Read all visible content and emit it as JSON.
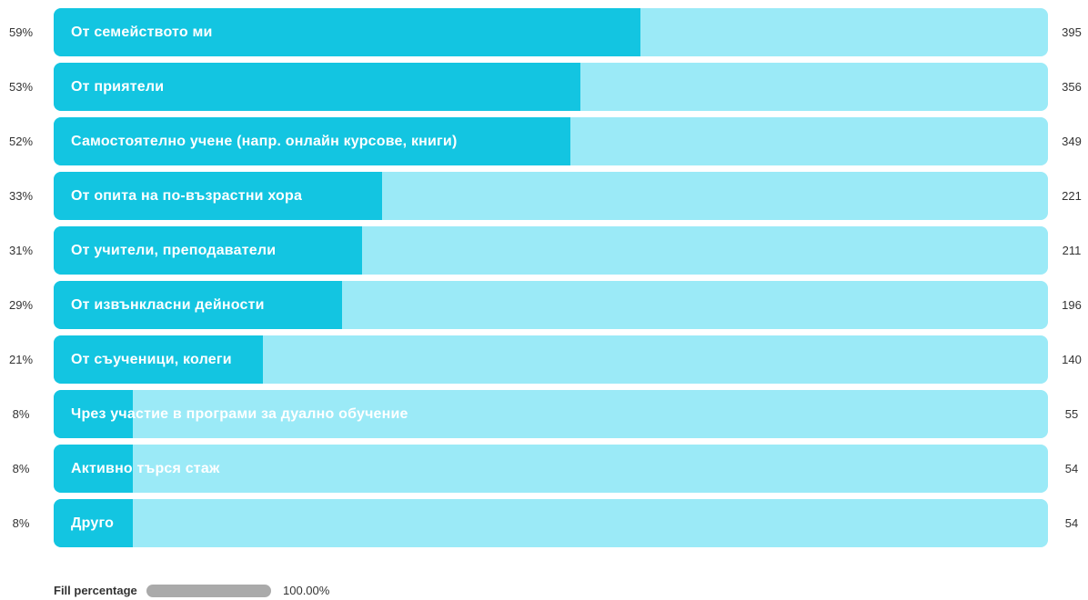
{
  "chart_data": {
    "type": "bar",
    "orientation": "horizontal",
    "categories": [
      "От семейството ми",
      "От приятели",
      "Самостоятелно учене (напр. онлайн курсове, книги)",
      "От опита на по-възрастни хора",
      "От учители, преподаватели",
      "От извънкласни дейности",
      "От съученици, колеги",
      "Чрез участие в програми за дуално обучение",
      "Активно търся стаж",
      "Друго"
    ],
    "percent_labels": [
      "59%",
      "53%",
      "52%",
      "33%",
      "31%",
      "29%",
      "21%",
      "8%",
      "8%",
      "8%"
    ],
    "values": [
      395,
      356,
      349,
      221,
      211,
      196,
      140,
      55,
      54,
      54
    ],
    "colors": {
      "fill": "#13c5e1",
      "track": "#9beaf7"
    }
  },
  "legend": {
    "label": "Fill percentage",
    "value": "100.00%",
    "color": "#aaaaaa"
  }
}
